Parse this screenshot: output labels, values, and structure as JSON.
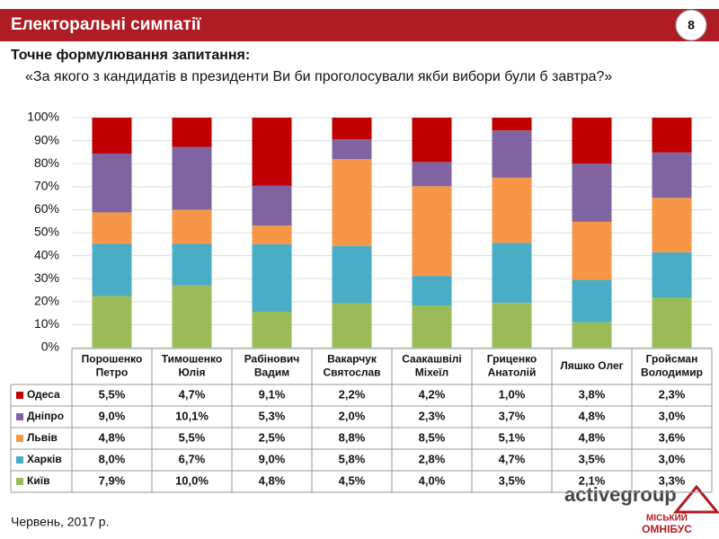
{
  "header": {
    "title": "Електоральні симпатії",
    "page_number": "8"
  },
  "question": {
    "label": "Точне формулювання запитання:",
    "text": "«За якого з кандидатів в президенти Ви би проголосували якби вибори були б завтра?»"
  },
  "chart_data": {
    "type": "bar",
    "stacking": "percent",
    "grid": true,
    "categories": [
      "Порошенко\nПетро",
      "Тимошенко\nЮлія",
      "Рабінович\nВадим",
      "Вакарчук\nСвятослав",
      "Саакашвілі\nМіхеїл",
      "Гриценко\nАнатолій",
      "Ляшко Олег",
      "Гройсман\nВолодимир"
    ],
    "ylim": [
      0,
      100
    ],
    "yticks": [
      {
        "value": 0,
        "label": "0%"
      },
      {
        "value": 10,
        "label": "10%"
      },
      {
        "value": 20,
        "label": "20%"
      },
      {
        "value": 30,
        "label": "30%"
      },
      {
        "value": 40,
        "label": "40%"
      },
      {
        "value": 50,
        "label": "50%"
      },
      {
        "value": 60,
        "label": "60%"
      },
      {
        "value": 70,
        "label": "70%"
      },
      {
        "value": 80,
        "label": "80%"
      },
      {
        "value": 90,
        "label": "90%"
      },
      {
        "value": 100,
        "label": "100%"
      }
    ],
    "series": [
      {
        "name": "Київ",
        "color": "#9bbb59",
        "values": [
          7.9,
          10.0,
          4.8,
          4.5,
          4.0,
          3.5,
          2.1,
          3.3
        ],
        "value_labels": [
          "7,9%",
          "10,0%",
          "4,8%",
          "4,5%",
          "4,0%",
          "3,5%",
          "2,1%",
          "3,3%"
        ]
      },
      {
        "name": "Харків",
        "color": "#4bacc6",
        "values": [
          8.0,
          6.7,
          9.0,
          5.8,
          2.8,
          4.7,
          3.5,
          3.0
        ],
        "value_labels": [
          "8,0%",
          "6,7%",
          "9,0%",
          "5,8%",
          "2,8%",
          "4,7%",
          "3,5%",
          "3,0%"
        ]
      },
      {
        "name": "Львів",
        "color": "#f79646",
        "values": [
          4.8,
          5.5,
          2.5,
          8.8,
          8.5,
          5.1,
          4.8,
          3.6
        ],
        "value_labels": [
          "4,8%",
          "5,5%",
          "2,5%",
          "8,8%",
          "8,5%",
          "5,1%",
          "4,8%",
          "3,6%"
        ]
      },
      {
        "name": "Дніпро",
        "color": "#8064a2",
        "values": [
          9.0,
          10.1,
          5.3,
          2.0,
          2.3,
          3.7,
          4.8,
          3.0
        ],
        "value_labels": [
          "9,0%",
          "10,1%",
          "5,3%",
          "2,0%",
          "2,3%",
          "3,7%",
          "4,8%",
          "3,0%"
        ]
      },
      {
        "name": "Одеса",
        "color": "#c00000",
        "values": [
          5.5,
          4.7,
          9.1,
          2.2,
          4.2,
          1.0,
          3.8,
          2.3
        ],
        "value_labels": [
          "5,5%",
          "4,7%",
          "9,1%",
          "2,2%",
          "4,2%",
          "1,0%",
          "3,8%",
          "2,3%"
        ]
      }
    ]
  },
  "footer": {
    "date": "Червень, 2017 р.",
    "logo": "activegroup",
    "badge_line1": "МІСЬКИЙ",
    "badge_line2": "ОМНІБУС"
  }
}
